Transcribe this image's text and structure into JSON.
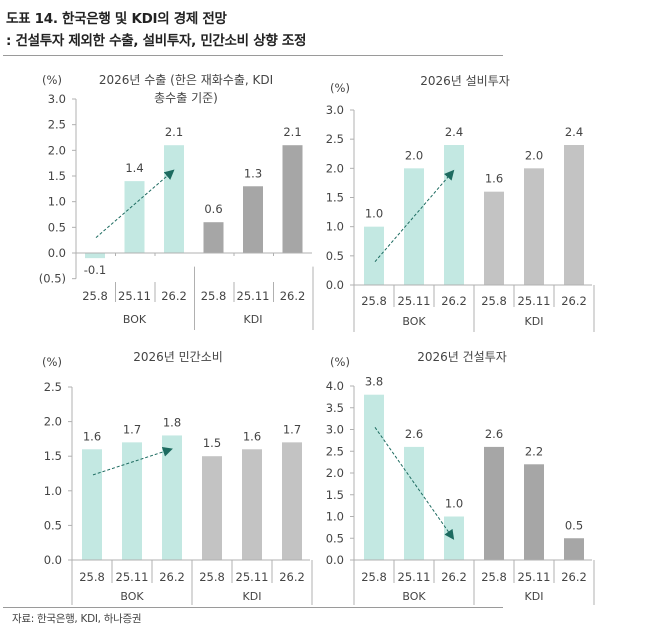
{
  "header": {
    "title_line1": "도표 14. 한국은행 및 KDI의 경제 전망",
    "title_line2": ": 건설투자 제외한 수출, 설비투자, 민간소비 상향 조정"
  },
  "footer": {
    "source": "자료: 한국은행, KDI, 하나증권"
  },
  "colors": {
    "bok_bar": "#c3e8e2",
    "kdi_bar_dark": "#a6a6a6",
    "kdi_bar_light": "#c3c3c3",
    "arrow": "#1d6b60",
    "axis": "#b0b0b0"
  },
  "chart_data": [
    {
      "type": "bar",
      "id": "exports",
      "title": "2026년 수출 (한은 재화수출, KDI 총수출 기준)",
      "title_lines": [
        "2026년 수출 (한은 재화수출, KDI",
        "총수출 기준)"
      ],
      "unit_label": "(%)",
      "categories": [
        "25.8",
        "25.11",
        "26.2",
        "25.8",
        "25.11",
        "26.2"
      ],
      "groups": [
        {
          "name": "BOK",
          "count": 3
        },
        {
          "name": "KDI",
          "count": 3
        }
      ],
      "values": [
        -0.1,
        1.4,
        2.1,
        0.6,
        1.3,
        2.1
      ],
      "data_labels": [
        "-0.1",
        "1.4",
        "2.1",
        "0.6",
        "1.3",
        "2.1"
      ],
      "ylim": [
        -0.5,
        3.0
      ],
      "yticks": [
        3.0,
        2.5,
        2.0,
        1.5,
        1.0,
        0.5,
        0.0,
        -0.5
      ],
      "ytick_labels": [
        "3.0",
        "2.5",
        "2.0",
        "1.5",
        "1.0",
        "0.5",
        "0.0",
        "(0.5)"
      ],
      "kdi_shade": "dark",
      "trend_arrow": {
        "from_category": 0,
        "from_value": 0.3,
        "to_category": 2,
        "to_value": 1.6,
        "direction": "up"
      }
    },
    {
      "type": "bar",
      "id": "facility-investment",
      "title": "2026년 설비투자",
      "title_lines": [
        "2026년 설비투자"
      ],
      "unit_label": "(%)",
      "categories": [
        "25.8",
        "25.11",
        "26.2",
        "25.8",
        "25.11",
        "26.2"
      ],
      "groups": [
        {
          "name": "BOK",
          "count": 3
        },
        {
          "name": "KDI",
          "count": 3
        }
      ],
      "values": [
        1.0,
        2.0,
        2.4,
        1.6,
        2.0,
        2.4
      ],
      "data_labels": [
        "1.0",
        "2.0",
        "2.4",
        "1.6",
        "2.0",
        "2.4"
      ],
      "ylim": [
        0.0,
        3.0
      ],
      "yticks": [
        3.0,
        2.5,
        2.0,
        1.5,
        1.0,
        0.5,
        0.0
      ],
      "ytick_labels": [
        "3.0",
        "2.5",
        "2.0",
        "1.5",
        "1.0",
        "0.5",
        "0.0"
      ],
      "kdi_shade": "light",
      "trend_arrow": {
        "from_category": 0,
        "from_value": 0.4,
        "to_category": 2,
        "to_value": 1.95,
        "direction": "up"
      }
    },
    {
      "type": "bar",
      "id": "private-consumption",
      "title": "2026년 민간소비",
      "title_lines": [
        "2026년 민간소비"
      ],
      "unit_label": "(%)",
      "categories": [
        "25.8",
        "25.11",
        "26.2",
        "25.8",
        "25.11",
        "26.2"
      ],
      "groups": [
        {
          "name": "BOK",
          "count": 3
        },
        {
          "name": "KDI",
          "count": 3
        }
      ],
      "values": [
        1.6,
        1.7,
        1.8,
        1.5,
        1.6,
        1.7
      ],
      "data_labels": [
        "1.6",
        "1.7",
        "1.8",
        "1.5",
        "1.6",
        "1.7"
      ],
      "ylim": [
        0.0,
        2.5
      ],
      "yticks": [
        2.5,
        2.0,
        1.5,
        1.0,
        0.5,
        0.0
      ],
      "ytick_labels": [
        "2.5",
        "2.0",
        "1.5",
        "1.0",
        "0.5",
        "0.0"
      ],
      "kdi_shade": "light",
      "trend_arrow": {
        "from_category": 0,
        "from_value": 1.23,
        "to_category": 2,
        "to_value": 1.6,
        "direction": "up"
      }
    },
    {
      "type": "bar",
      "id": "construction-investment",
      "title": "2026년 건설투자",
      "title_lines": [
        "2026년 건설투자"
      ],
      "unit_label": "(%)",
      "categories": [
        "25.8",
        "25.11",
        "26.2",
        "25.8",
        "25.11",
        "26.2"
      ],
      "groups": [
        {
          "name": "BOK",
          "count": 3
        },
        {
          "name": "KDI",
          "count": 3
        }
      ],
      "values": [
        3.8,
        2.6,
        1.0,
        2.6,
        2.2,
        0.5
      ],
      "data_labels": [
        "3.8",
        "2.6",
        "1.0",
        "2.6",
        "2.2",
        "0.5"
      ],
      "ylim": [
        0.0,
        4.0
      ],
      "yticks": [
        4.0,
        3.5,
        3.0,
        2.5,
        2.0,
        1.5,
        1.0,
        0.5,
        0.0
      ],
      "ytick_labels": [
        "4.0",
        "3.5",
        "3.0",
        "2.5",
        "2.0",
        "1.5",
        "1.0",
        "0.5",
        "0.0"
      ],
      "kdi_shade": "dark",
      "trend_arrow": {
        "from_category": 0,
        "from_value": 3.05,
        "to_category": 2,
        "to_value": 0.5,
        "direction": "down"
      }
    }
  ]
}
